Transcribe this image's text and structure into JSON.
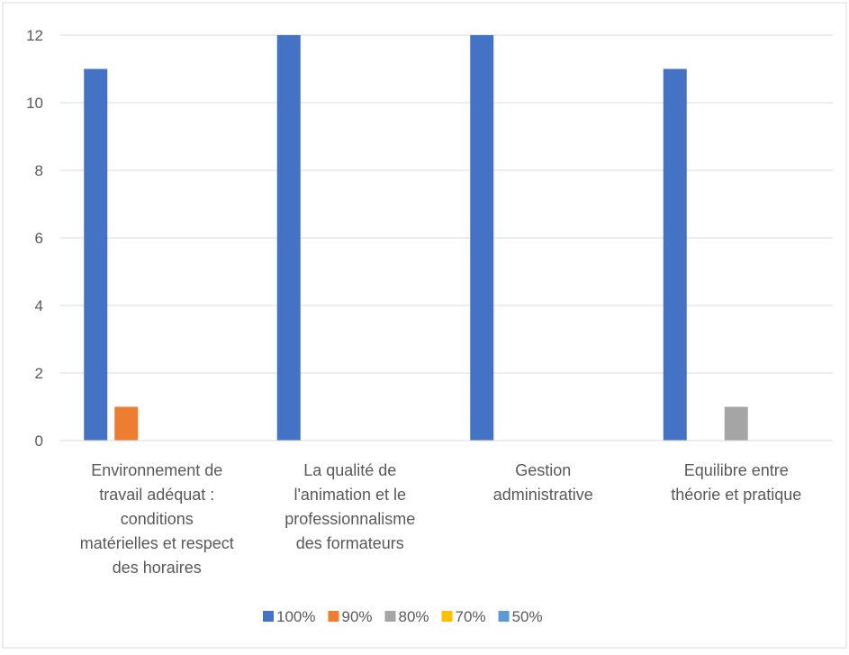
{
  "chart_data": {
    "type": "bar",
    "title": "",
    "xlabel": "",
    "ylabel": "",
    "ylim": [
      0,
      12
    ],
    "yticks": [
      0,
      2,
      4,
      6,
      8,
      10,
      12
    ],
    "grid": true,
    "legend_position": "bottom",
    "categories": [
      "Environnement de travail adéquat : conditions matérielles et respect des horaires",
      "La qualité de l'animation et le professionnalisme des formateurs",
      "Gestion administrative",
      "Equilibre entre théorie et pratique"
    ],
    "category_lines": [
      [
        "Environnement de",
        "travail adéquat :",
        "conditions",
        "matérielles et respect",
        "des horaires"
      ],
      [
        "La qualité de",
        "l'animation et le",
        "professionnalisme",
        "des formateurs"
      ],
      [
        "Gestion",
        "administrative"
      ],
      [
        "Equilibre entre",
        "théorie et pratique"
      ]
    ],
    "series": [
      {
        "name": "100%",
        "color": "#4472C4",
        "values": [
          11,
          12,
          12,
          11
        ]
      },
      {
        "name": "90%",
        "color": "#ED7D31",
        "values": [
          1,
          0,
          0,
          0
        ]
      },
      {
        "name": "80%",
        "color": "#A5A5A5",
        "values": [
          0,
          0,
          0,
          1
        ]
      },
      {
        "name": "70%",
        "color": "#FFC000",
        "values": [
          0,
          0,
          0,
          0
        ]
      },
      {
        "name": "50%",
        "color": "#5B9BD5",
        "values": [
          0,
          0,
          0,
          0
        ]
      }
    ]
  }
}
